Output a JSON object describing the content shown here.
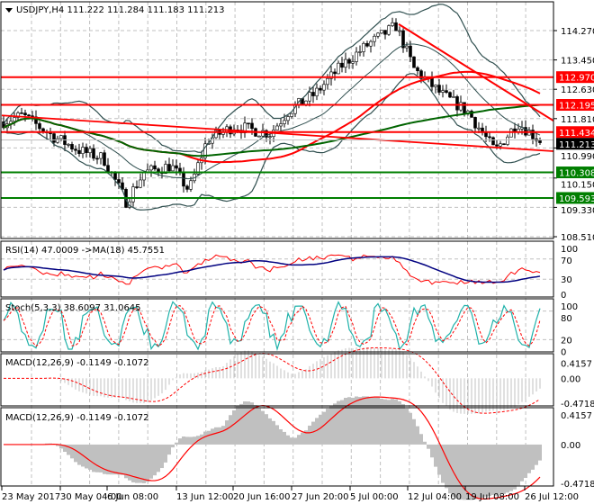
{
  "header": {
    "symbol": "USDJPY,H4",
    "open": "111.222",
    "high": "111.284",
    "low": "111.183",
    "close": "111.213"
  },
  "price_axis": [
    "114.270",
    "113.450",
    "112.630",
    "111.810",
    "110.990",
    "110.150",
    "109.330",
    "108.510"
  ],
  "levels": [
    {
      "value": "112.970",
      "color": "#ff0000"
    },
    {
      "value": "112.195",
      "color": "#ff0000"
    },
    {
      "value": "111.434",
      "color": "#ff0000"
    },
    {
      "value": "111.213",
      "color": "#000000"
    },
    {
      "value": "110.308",
      "color": "#007f00"
    },
    {
      "value": "109.593",
      "color": "#007f00"
    }
  ],
  "rsi": {
    "label": "RSI(14) 47.0009  ->MA(18) 45.7551",
    "axis": [
      "100",
      "70",
      "30",
      "0"
    ]
  },
  "stoch": {
    "label": "Stoch(5,3,3) 38.6097 31.0645",
    "axis": [
      "100",
      "80",
      "20",
      "0"
    ]
  },
  "macd1": {
    "label": "MACD(12,26,9) -0.1149 -0.1072",
    "axis": [
      "0.4157",
      "0.00",
      "-0.4718"
    ]
  },
  "macd2": {
    "label": "MACD(12,26,9) -0.1149 -0.1072",
    "axis": [
      "0.4157",
      "0.00",
      "-0.4718"
    ]
  },
  "time_axis": [
    "23 May 2017",
    "30 May 04:00",
    "6 Jun 08:00",
    "13 Jun 12:00",
    "20 Jun 16:00",
    "27 Jun 20:00",
    "5 Jul 00:00",
    "12 Jul 04:00",
    "19 Jul 08:00",
    "26 Jul 12:00"
  ],
  "chart_data": {
    "type": "candlestick",
    "title": "USDJPY,H4",
    "ylim": [
      108.3,
      114.9
    ],
    "close_path": [
      [
        0,
        111.7
      ],
      [
        25,
        111.9
      ],
      [
        60,
        111.3
      ],
      [
        90,
        110.9
      ],
      [
        115,
        110.7
      ],
      [
        140,
        109.5
      ],
      [
        160,
        110.3
      ],
      [
        190,
        110.5
      ],
      [
        210,
        109.8
      ],
      [
        230,
        111.2
      ],
      [
        260,
        111.6
      ],
      [
        300,
        111.4
      ],
      [
        320,
        112.0
      ],
      [
        350,
        112.5
      ],
      [
        380,
        113.3
      ],
      [
        410,
        113.9
      ],
      [
        440,
        114.4
      ],
      [
        460,
        113.2
      ],
      [
        490,
        112.5
      ],
      [
        520,
        112.0
      ],
      [
        550,
        110.9
      ],
      [
        575,
        111.7
      ],
      [
        600,
        111.2
      ]
    ]
  }
}
